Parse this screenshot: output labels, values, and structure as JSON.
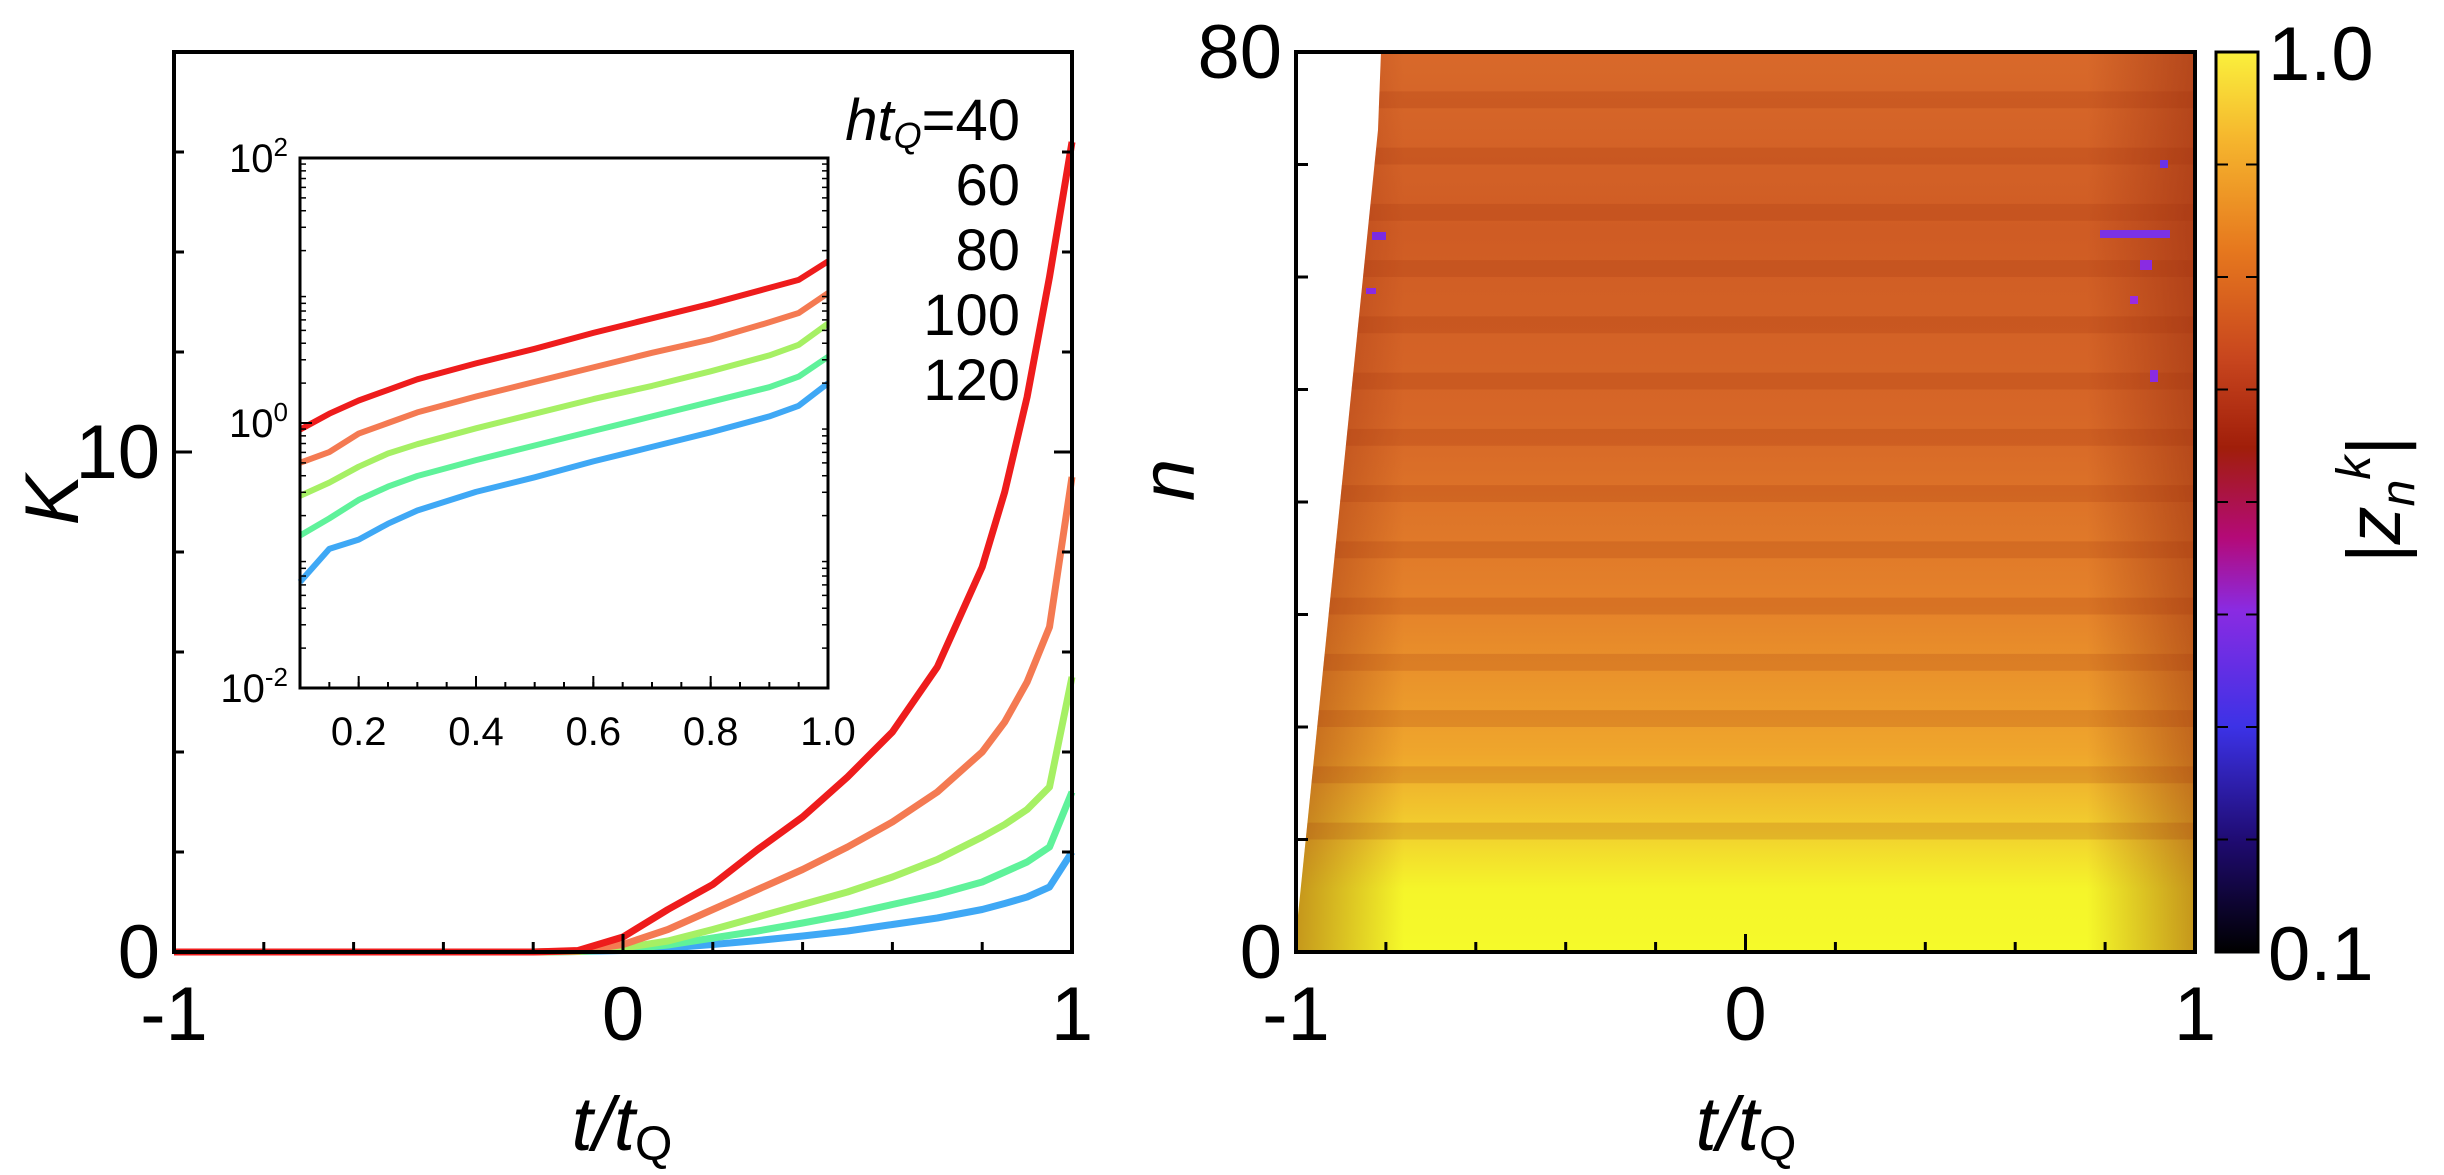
{
  "chart_data": [
    {
      "type": "line",
      "xlabel_main": "t/t",
      "xlabel_sub": "Q",
      "ylabel": "K",
      "xlim": [
        -1,
        1
      ],
      "ylim": [
        0,
        18
      ],
      "xticks": [
        {
          "value": -1,
          "label": "-1"
        },
        {
          "value": 0,
          "label": "0"
        },
        {
          "value": 1,
          "label": "1"
        }
      ],
      "yticks": [
        {
          "value": 0,
          "label": "0"
        },
        {
          "value": 10,
          "label": "10"
        }
      ],
      "legend_prefix_main": "ht",
      "legend_prefix_sub": "Q",
      "legend_prefix_eq": "=",
      "series": [
        {
          "name": "40",
          "color": "#ee1c1c",
          "x": [
            -1,
            -0.2,
            -0.1,
            0,
            0.1,
            0.2,
            0.3,
            0.4,
            0.5,
            0.6,
            0.7,
            0.8,
            0.85,
            0.9,
            0.95,
            1.0
          ],
          "y": [
            0,
            0,
            0.03,
            0.3,
            0.85,
            1.35,
            2.05,
            2.7,
            3.5,
            4.4,
            5.7,
            7.7,
            9.2,
            11.1,
            13.5,
            16.2
          ]
        },
        {
          "name": "60",
          "color": "#f47a52",
          "x": [
            -1,
            -0.2,
            -0.1,
            0,
            0.1,
            0.2,
            0.3,
            0.4,
            0.5,
            0.6,
            0.7,
            0.8,
            0.85,
            0.9,
            0.95,
            1.0
          ],
          "y": [
            0,
            0,
            0.02,
            0.15,
            0.45,
            0.85,
            1.25,
            1.65,
            2.1,
            2.6,
            3.2,
            4.0,
            4.6,
            5.4,
            6.5,
            9.5
          ]
        },
        {
          "name": "80",
          "color": "#a6f064",
          "x": [
            -1,
            -0.2,
            -0.1,
            0,
            0.1,
            0.2,
            0.3,
            0.4,
            0.5,
            0.6,
            0.7,
            0.8,
            0.85,
            0.9,
            0.95,
            1.0
          ],
          "y": [
            0,
            0,
            0.01,
            0.08,
            0.22,
            0.45,
            0.7,
            0.95,
            1.2,
            1.5,
            1.85,
            2.3,
            2.55,
            2.85,
            3.3,
            5.5
          ]
        },
        {
          "name": "100",
          "color": "#5ff29a",
          "x": [
            -1,
            -0.2,
            -0.1,
            0,
            0.1,
            0.2,
            0.3,
            0.4,
            0.5,
            0.6,
            0.7,
            0.8,
            0.85,
            0.9,
            0.95,
            1.0
          ],
          "y": [
            0,
            0,
            0.01,
            0.05,
            0.14,
            0.28,
            0.42,
            0.58,
            0.75,
            0.95,
            1.15,
            1.4,
            1.6,
            1.8,
            2.1,
            3.2
          ]
        },
        {
          "name": "120",
          "color": "#3fa8f5",
          "x": [
            -1,
            -0.2,
            -0.1,
            0,
            0.1,
            0.2,
            0.3,
            0.4,
            0.5,
            0.6,
            0.7,
            0.8,
            0.85,
            0.9,
            0.95,
            1.0
          ],
          "y": [
            0,
            0,
            0.01,
            0.03,
            0.08,
            0.15,
            0.23,
            0.32,
            0.42,
            0.55,
            0.68,
            0.85,
            0.97,
            1.1,
            1.3,
            2.0
          ]
        }
      ],
      "inset": {
        "type": "line",
        "yscale": "log",
        "xlim": [
          0.1,
          1.0
        ],
        "ylim_log10": [
          -2,
          2
        ],
        "xticks": [
          {
            "value": 0.2,
            "label": "0.2"
          },
          {
            "value": 0.4,
            "label": "0.4"
          },
          {
            "value": 0.6,
            "label": "0.6"
          },
          {
            "value": 0.8,
            "label": "0.8"
          },
          {
            "value": 1.0,
            "label": "1.0"
          }
        ],
        "yticks": [
          {
            "value": -2,
            "base": "10",
            "exp": "-2"
          },
          {
            "value": 0,
            "base": "10",
            "exp": "0"
          },
          {
            "value": 2,
            "base": "10",
            "exp": "2"
          }
        ],
        "x": [
          0.1,
          0.15,
          0.2,
          0.25,
          0.3,
          0.4,
          0.5,
          0.6,
          0.7,
          0.8,
          0.9,
          0.95,
          1.0
        ],
        "log10_y": [
          [
            -0.05,
            0.07,
            0.17,
            0.25,
            0.33,
            0.45,
            0.56,
            0.68,
            0.79,
            0.9,
            1.02,
            1.08,
            1.22
          ],
          [
            -0.3,
            -0.22,
            -0.08,
            0.0,
            0.08,
            0.2,
            0.31,
            0.42,
            0.53,
            0.63,
            0.76,
            0.83,
            0.98
          ],
          [
            -0.55,
            -0.45,
            -0.33,
            -0.23,
            -0.16,
            -0.04,
            0.07,
            0.18,
            0.28,
            0.39,
            0.51,
            0.59,
            0.75
          ],
          [
            -0.85,
            -0.72,
            -0.58,
            -0.48,
            -0.4,
            -0.28,
            -0.17,
            -0.06,
            0.05,
            0.16,
            0.27,
            0.35,
            0.5
          ],
          [
            -1.2,
            -0.95,
            -0.88,
            -0.76,
            -0.66,
            -0.52,
            -0.41,
            -0.29,
            -0.18,
            -0.07,
            0.05,
            0.13,
            0.3
          ]
        ]
      }
    },
    {
      "type": "heatmap",
      "xlabel_main": "t/t",
      "xlabel_sub": "Q",
      "ylabel": "n",
      "xlim": [
        -1,
        1
      ],
      "ylim": [
        0,
        80
      ],
      "xticks": [
        {
          "value": -1,
          "label": "-1"
        },
        {
          "value": 0,
          "label": "0"
        },
        {
          "value": 1,
          "label": "1"
        }
      ],
      "yticks": [
        {
          "value": 0,
          "label": "0"
        },
        {
          "value": 80,
          "label": "80"
        }
      ],
      "colorbar": {
        "label_main": "|z",
        "label_sub": "n",
        "label_sup": "k",
        "label_end": "|",
        "min_label": "0.1",
        "max_label": "1.0",
        "range": [
          0.1,
          1.0
        ],
        "colors": [
          "#000000",
          "#1e0a6e",
          "#3c32e6",
          "#8a2be2",
          "#b40a78",
          "#a01e0a",
          "#c8461e",
          "#e6781e",
          "#f5b42d",
          "#faf03c"
        ]
      }
    }
  ]
}
